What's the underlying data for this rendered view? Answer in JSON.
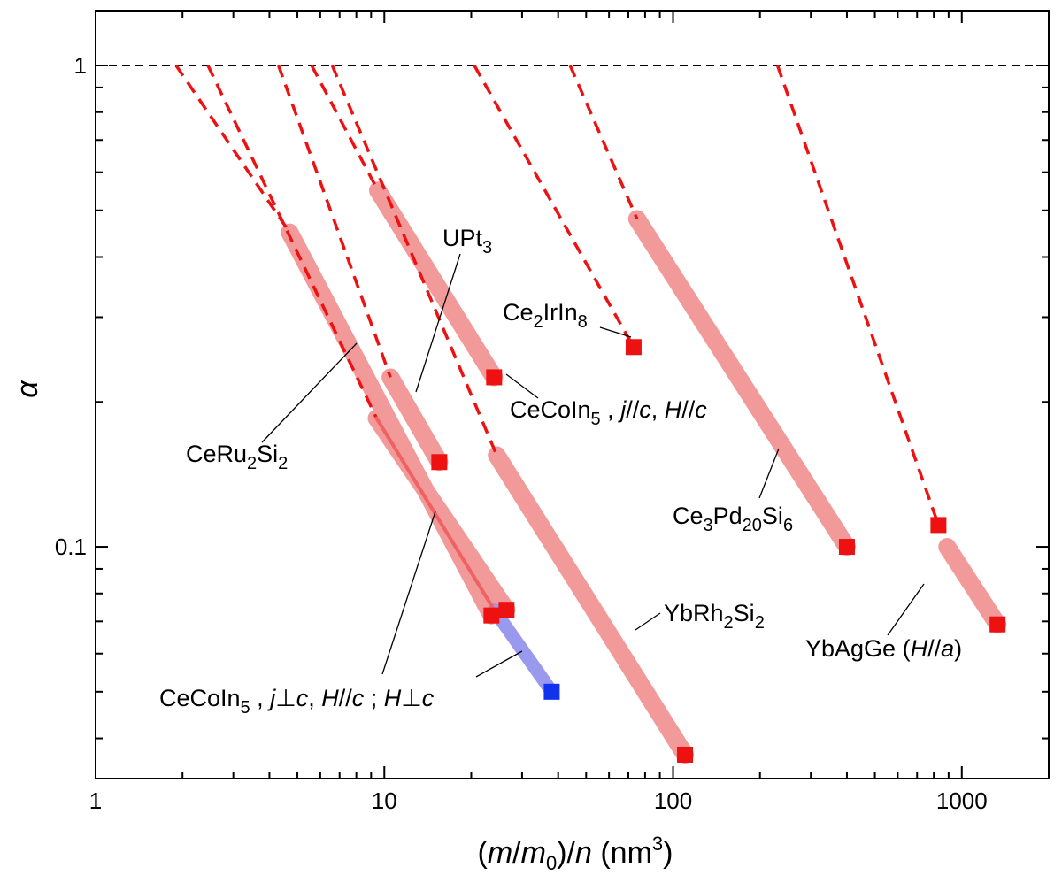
{
  "chart_data": {
    "type": "scatter",
    "title": "",
    "xlabel": {
      "pre": "(",
      "m1": "m",
      "slash1": "/",
      "m0": "m",
      "sub0": "0",
      "post": ")/",
      "n": "n",
      "unit": " (nm",
      "exp": "3",
      "close": ")"
    },
    "ylabel": "α",
    "x_scale": "log",
    "y_scale": "log",
    "xlim": [
      1,
      2000
    ],
    "ylim": [
      0.033,
      1.3
    ],
    "x_ticks": [
      "1",
      "10",
      "100",
      "1000"
    ],
    "y_ticks": [
      "0.1",
      "1"
    ],
    "reference_line": {
      "y": 1,
      "style": "dashed",
      "color": "#000000"
    },
    "colors": {
      "pink": "#f29999",
      "red": "#ee1111",
      "blue": "#9999ee",
      "blue_point": "#1133ee",
      "red_line": "#f06262"
    },
    "series": [
      {
        "label": "CeRu2Si2",
        "band": [
          [
            4.7,
            0.45
          ],
          [
            23.5,
            0.072
          ]
        ],
        "point": [
          23.5,
          0.072
        ],
        "extrapolation": [
          [
            1.9,
            1.0
          ],
          [
            4.7,
            0.45
          ]
        ]
      },
      {
        "label": "CeCoIn5, j⊥c, H//c ; H⊥c",
        "band": [
          [
            9.4,
            0.185
          ],
          [
            26.5,
            0.074
          ]
        ],
        "point": [
          26.5,
          0.074
        ],
        "extrapolation": [
          [
            2.45,
            1.0
          ],
          [
            9.4,
            0.185
          ]
        ],
        "inner_line": [
          [
            9.4,
            0.185
          ],
          [
            24,
            0.074
          ]
        ],
        "blue_band": [
          [
            24,
            0.074
          ],
          [
            38,
            0.05
          ]
        ],
        "blue_point": [
          38,
          0.05
        ]
      },
      {
        "label": "UPt3",
        "band": [
          [
            10.5,
            0.225
          ],
          [
            15.5,
            0.15
          ]
        ],
        "point": [
          15.5,
          0.15
        ],
        "extrapolation": [
          [
            4.3,
            1.0
          ],
          [
            10.5,
            0.225
          ]
        ]
      },
      {
        "label": "CeCoIn5, j//c, H//c",
        "band": [
          [
            9.5,
            0.55
          ],
          [
            24,
            0.225
          ]
        ],
        "point": [
          24,
          0.225
        ],
        "extrapolation": [
          [
            5.6,
            1.0
          ],
          [
            9.5,
            0.55
          ]
        ]
      },
      {
        "label": "YbRh2Si2",
        "band": [
          [
            24.5,
            0.155
          ],
          [
            110,
            0.037
          ]
        ],
        "point": [
          110,
          0.037
        ],
        "extrapolation": [
          [
            6.6,
            1.0
          ],
          [
            24.5,
            0.155
          ]
        ]
      },
      {
        "label": "Ce2IrIn8",
        "point": [
          73,
          0.26
        ],
        "extrapolation": [
          [
            20.5,
            1.0
          ],
          [
            73,
            0.26
          ]
        ]
      },
      {
        "label": "Ce3Pd20Si6",
        "band": [
          [
            75,
            0.48
          ],
          [
            400,
            0.1
          ]
        ],
        "point": [
          400,
          0.1
        ],
        "extrapolation": [
          [
            44,
            1.0
          ],
          [
            75,
            0.48
          ]
        ]
      },
      {
        "label": "YbAgGe (H//a)",
        "band": [
          [
            890,
            0.1
          ],
          [
            1330,
            0.069
          ]
        ],
        "point": [
          1330,
          0.069
        ],
        "extrapolation": [
          [
            230,
            1.0
          ],
          [
            830,
            0.111
          ]
        ],
        "point2": [
          830,
          0.111
        ]
      }
    ],
    "annotations": [
      {
        "id": "ceru2si2",
        "parts": [
          {
            "t": "CeRu"
          },
          {
            "t": "2",
            "sub": true
          },
          {
            "t": "Si"
          },
          {
            "t": "2",
            "sub": true
          }
        ]
      },
      {
        "id": "upt3",
        "parts": [
          {
            "t": "UPt"
          },
          {
            "t": "3",
            "sub": true
          }
        ]
      },
      {
        "id": "ce2irin8",
        "parts": [
          {
            "t": "Ce"
          },
          {
            "t": "2",
            "sub": true
          },
          {
            "t": "IrIn"
          },
          {
            "t": "8",
            "sub": true
          }
        ]
      },
      {
        "id": "cecoin5-par",
        "parts": [
          {
            "t": "CeCoIn"
          },
          {
            "t": "5",
            "sub": true
          },
          {
            "t": " , "
          },
          {
            "t": "j",
            "it": true
          },
          {
            "t": "//"
          },
          {
            "t": "c",
            "it": true
          },
          {
            "t": ", "
          },
          {
            "t": "H",
            "it": true
          },
          {
            "t": "//"
          },
          {
            "t": "c",
            "it": true
          }
        ]
      },
      {
        "id": "ce3pd20si6",
        "parts": [
          {
            "t": "Ce"
          },
          {
            "t": "3",
            "sub": true
          },
          {
            "t": "Pd"
          },
          {
            "t": "20",
            "sub": true
          },
          {
            "t": "Si"
          },
          {
            "t": "6",
            "sub": true
          }
        ]
      },
      {
        "id": "ybrh2si2",
        "parts": [
          {
            "t": "YbRh"
          },
          {
            "t": "2",
            "sub": true
          },
          {
            "t": "Si"
          },
          {
            "t": "2",
            "sub": true
          }
        ]
      },
      {
        "id": "ybagge",
        "parts": [
          {
            "t": "YbAgGe  ("
          },
          {
            "t": "H",
            "it": true
          },
          {
            "t": "//"
          },
          {
            "t": "a",
            "it": true
          },
          {
            "t": ")"
          }
        ]
      },
      {
        "id": "cecoin5-perp",
        "parts": [
          {
            "t": "CeCoIn"
          },
          {
            "t": "5",
            "sub": true
          },
          {
            "t": " , "
          },
          {
            "t": "j",
            "it": true
          },
          {
            "t": "⊥"
          },
          {
            "t": "c",
            "it": true
          },
          {
            "t": ", "
          },
          {
            "t": "H",
            "it": true
          },
          {
            "t": "//"
          },
          {
            "t": "c",
            "it": true
          },
          {
            "t": " ; "
          },
          {
            "t": "H",
            "it": true
          },
          {
            "t": "⊥"
          },
          {
            "t": "c",
            "it": true
          }
        ]
      }
    ]
  }
}
